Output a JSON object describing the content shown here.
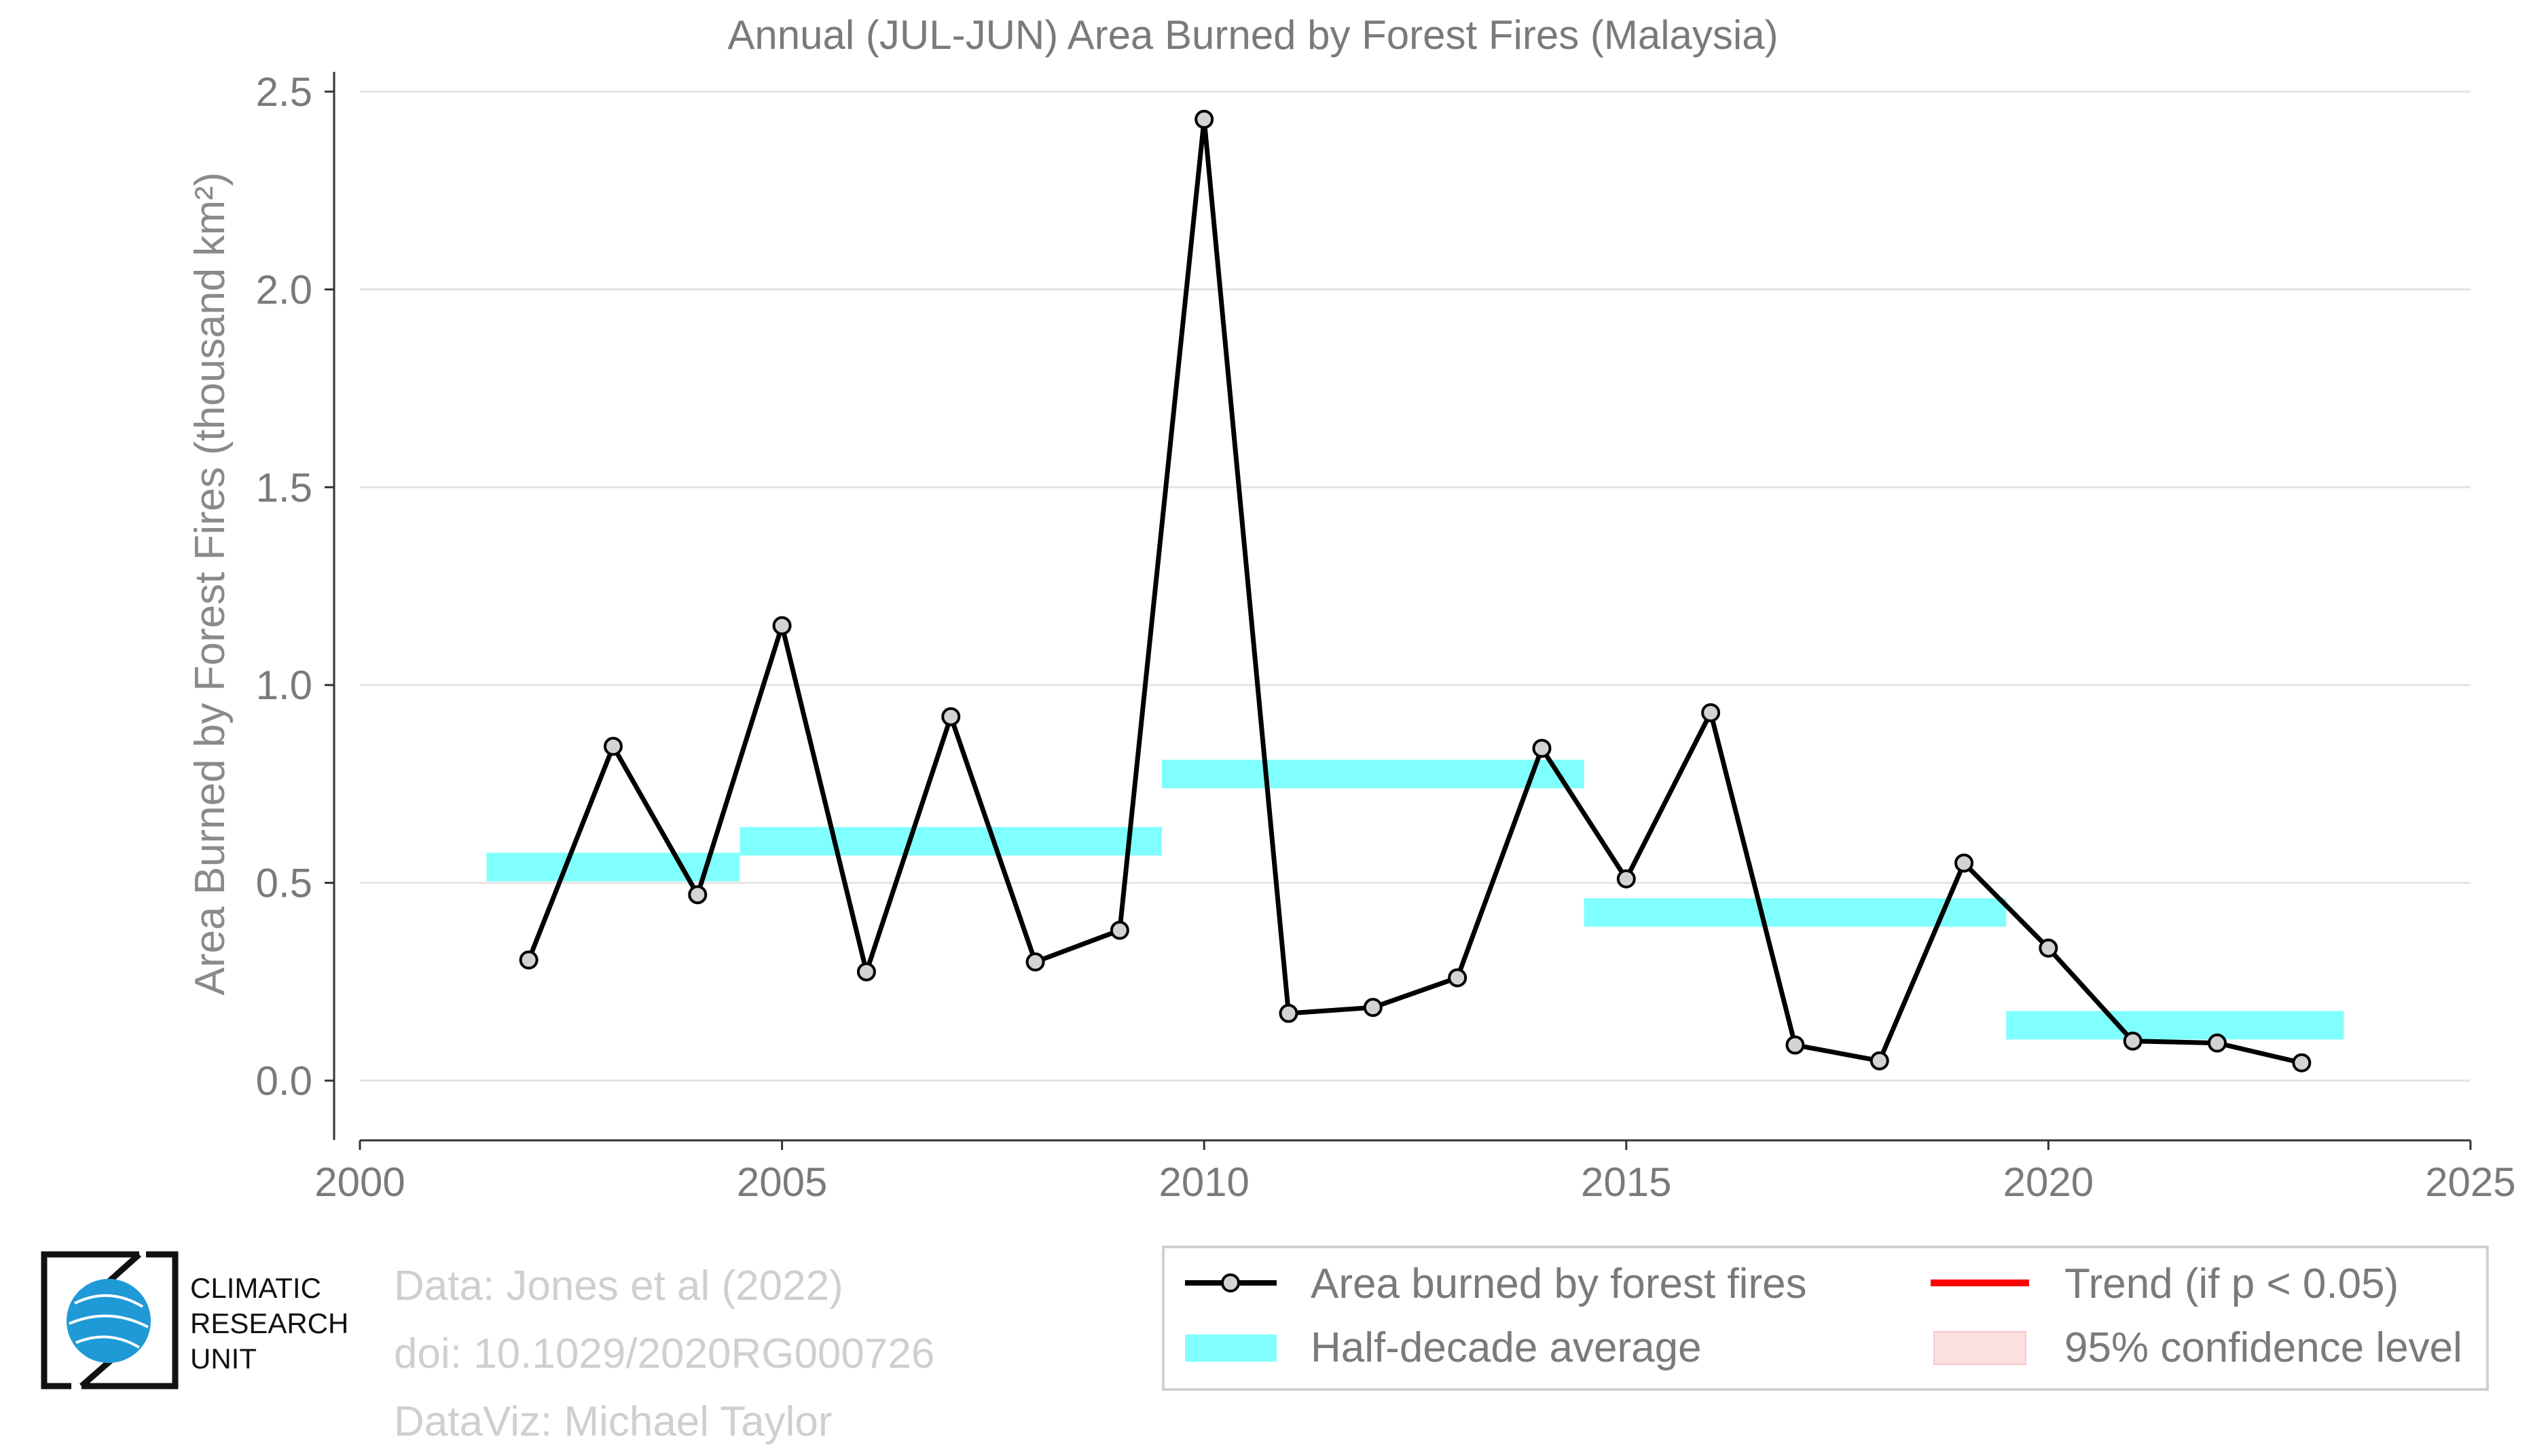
{
  "chart_data": {
    "type": "line",
    "title": "Annual (JUL-JUN) Area Burned by Forest Fires (Malaysia)",
    "xlabel": "",
    "ylabel": "Area Burned by Forest Fires (thousand km²)",
    "xlim": [
      2000,
      2025
    ],
    "ylim": [
      -0.15,
      2.55
    ],
    "xticks": [
      2000,
      2005,
      2010,
      2015,
      2020,
      2025
    ],
    "yticks": [
      0.0,
      0.5,
      1.0,
      1.5,
      2.0,
      2.5
    ],
    "xtick_labels": [
      "2000",
      "2005",
      "2010",
      "2015",
      "2020",
      "2025"
    ],
    "ytick_labels": [
      "0.0",
      "0.5",
      "1.0",
      "1.5",
      "2.0",
      "2.5"
    ],
    "grid": "horizontal",
    "series": [
      {
        "name": "Area burned by forest fires",
        "color": "#000000",
        "marker_fill": "#d3d3d3",
        "x": [
          2002,
          2003,
          2004,
          2005,
          2006,
          2007,
          2008,
          2009,
          2010,
          2011,
          2012,
          2013,
          2014,
          2015,
          2016,
          2017,
          2018,
          2019,
          2020,
          2021,
          2022,
          2023
        ],
        "y": [
          0.305,
          0.845,
          0.47,
          1.15,
          0.275,
          0.92,
          0.3,
          0.38,
          2.43,
          0.17,
          0.185,
          0.26,
          0.84,
          0.51,
          0.93,
          0.09,
          0.05,
          0.55,
          0.335,
          0.1,
          0.095,
          0.045
        ]
      }
    ],
    "half_decade_average": {
      "name": "Half-decade average",
      "color": "#80ffff",
      "segments": [
        {
          "x_start": 2001.5,
          "x_end": 2004.5,
          "y": 0.54
        },
        {
          "x_start": 2004.5,
          "x_end": 2009.5,
          "y": 0.605
        },
        {
          "x_start": 2009.5,
          "x_end": 2014.5,
          "y": 0.775
        },
        {
          "x_start": 2014.5,
          "x_end": 2019.5,
          "y": 0.425
        },
        {
          "x_start": 2019.5,
          "x_end": 2023.5,
          "y": 0.14
        }
      ]
    },
    "legend": {
      "placement": "bottom-right",
      "items": [
        {
          "label": "Area burned by forest fires",
          "kind": "line-marker",
          "color": "#000000"
        },
        {
          "label": "Trend (if p < 0.05)",
          "kind": "line",
          "color": "#ff0000"
        },
        {
          "label": "Half-decade average",
          "kind": "band",
          "color": "#80ffff"
        },
        {
          "label": "95% confidence level",
          "kind": "band",
          "color": "#fde0e0"
        }
      ]
    }
  },
  "logo": {
    "line1": "CLIMATIC",
    "line2": "RESEARCH",
    "line3": "UNIT"
  },
  "credits": {
    "data": "Data: Jones et al (2022)",
    "doi": "doi: 10.1029/2020RG000726",
    "dataviz": "DataViz: Michael Taylor"
  }
}
